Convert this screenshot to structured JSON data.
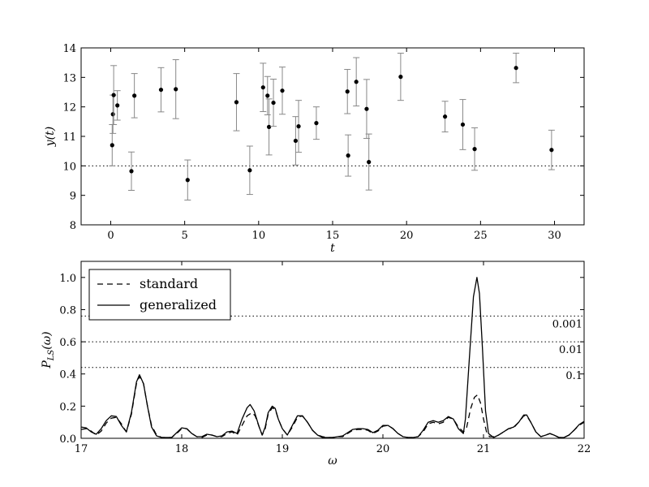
{
  "chart_data": [
    {
      "type": "scatter",
      "xlabel": "t",
      "ylabel": "y(t)",
      "xlim": [
        -2,
        32
      ],
      "ylim": [
        8,
        14
      ],
      "xticks": [
        0,
        5,
        10,
        15,
        20,
        25,
        30
      ],
      "yticks": [
        8,
        9,
        10,
        11,
        12,
        13,
        14
      ],
      "reference_line": {
        "y": 10,
        "style": "dotted"
      },
      "series": [
        {
          "points": [
            {
              "x": 0.1,
              "y": 10.7,
              "err": 0.7
            },
            {
              "x": 0.15,
              "y": 11.75,
              "err": 0.65
            },
            {
              "x": 0.2,
              "y": 12.4,
              "err": 1.0
            },
            {
              "x": 0.45,
              "y": 12.05,
              "err": 0.5
            },
            {
              "x": 1.4,
              "y": 9.82,
              "err": 0.65
            },
            {
              "x": 1.6,
              "y": 12.38,
              "err": 0.75
            },
            {
              "x": 3.4,
              "y": 12.58,
              "err": 0.75
            },
            {
              "x": 4.4,
              "y": 12.6,
              "err": 1.0
            },
            {
              "x": 5.2,
              "y": 9.52,
              "err": 0.68
            },
            {
              "x": 8.5,
              "y": 12.16,
              "err": 0.97
            },
            {
              "x": 9.4,
              "y": 9.85,
              "err": 0.82
            },
            {
              "x": 10.3,
              "y": 12.66,
              "err": 0.82
            },
            {
              "x": 10.6,
              "y": 12.38,
              "err": 0.65
            },
            {
              "x": 10.7,
              "y": 11.32,
              "err": 0.95
            },
            {
              "x": 11.0,
              "y": 12.14,
              "err": 0.8
            },
            {
              "x": 11.6,
              "y": 12.55,
              "err": 0.8
            },
            {
              "x": 12.5,
              "y": 10.85,
              "err": 0.82
            },
            {
              "x": 12.7,
              "y": 11.34,
              "err": 0.88
            },
            {
              "x": 13.9,
              "y": 11.45,
              "err": 0.55
            },
            {
              "x": 16.0,
              "y": 12.52,
              "err": 0.75
            },
            {
              "x": 16.05,
              "y": 10.35,
              "err": 0.7
            },
            {
              "x": 16.6,
              "y": 12.85,
              "err": 0.82
            },
            {
              "x": 17.3,
              "y": 11.93,
              "err": 1.0
            },
            {
              "x": 17.45,
              "y": 10.13,
              "err": 0.95
            },
            {
              "x": 19.6,
              "y": 13.02,
              "err": 0.8
            },
            {
              "x": 22.6,
              "y": 11.67,
              "err": 0.52
            },
            {
              "x": 23.8,
              "y": 11.4,
              "err": 0.85
            },
            {
              "x": 24.6,
              "y": 10.57,
              "err": 0.72
            },
            {
              "x": 27.4,
              "y": 13.32,
              "err": 0.5
            },
            {
              "x": 29.8,
              "y": 10.54,
              "err": 0.67
            }
          ]
        }
      ]
    },
    {
      "type": "line",
      "xlabel": "ω",
      "ylabel": "P_LS(ω)",
      "xlim": [
        17,
        22
      ],
      "ylim": [
        0,
        1.1
      ],
      "xticks": [
        17,
        18,
        19,
        20,
        21,
        22
      ],
      "yticks": [
        "0.0",
        "0.2",
        "0.4",
        "0.6",
        "0.8",
        "1.0"
      ],
      "legend": {
        "position": "top-left"
      },
      "levels": [
        {
          "y": 0.76,
          "label": "0.001"
        },
        {
          "y": 0.6,
          "label": "0.01"
        },
        {
          "y": 0.44,
          "label": "0.1"
        }
      ],
      "series": [
        {
          "name": "standard",
          "style": "dashed",
          "points": [
            [
              17.0,
              0.055
            ],
            [
              17.05,
              0.06
            ],
            [
              17.1,
              0.045
            ],
            [
              17.15,
              0.02
            ],
            [
              17.2,
              0.045
            ],
            [
              17.25,
              0.095
            ],
            [
              17.3,
              0.125
            ],
            [
              17.35,
              0.13
            ],
            [
              17.4,
              0.09
            ],
            [
              17.45,
              0.04
            ],
            [
              17.5,
              0.15
            ],
            [
              17.55,
              0.34
            ],
            [
              17.58,
              0.385
            ],
            [
              17.62,
              0.34
            ],
            [
              17.66,
              0.2
            ],
            [
              17.7,
              0.08
            ],
            [
              17.75,
              0.02
            ],
            [
              17.8,
              0.005
            ],
            [
              17.85,
              0.005
            ],
            [
              17.9,
              0.005
            ],
            [
              17.95,
              0.03
            ],
            [
              18.0,
              0.06
            ],
            [
              18.05,
              0.06
            ],
            [
              18.1,
              0.03
            ],
            [
              18.15,
              0.01
            ],
            [
              18.2,
              0.005
            ],
            [
              18.25,
              0.02
            ],
            [
              18.3,
              0.02
            ],
            [
              18.35,
              0.01
            ],
            [
              18.4,
              0.01
            ],
            [
              18.45,
              0.03
            ],
            [
              18.5,
              0.04
            ],
            [
              18.55,
              0.02
            ],
            [
              18.6,
              0.08
            ],
            [
              18.65,
              0.14
            ],
            [
              18.7,
              0.16
            ],
            [
              18.73,
              0.14
            ],
            [
              18.77,
              0.07
            ],
            [
              18.8,
              0.02
            ],
            [
              18.83,
              0.06
            ],
            [
              18.86,
              0.15
            ],
            [
              18.9,
              0.19
            ],
            [
              18.93,
              0.18
            ],
            [
              18.96,
              0.12
            ],
            [
              19.0,
              0.06
            ],
            [
              19.05,
              0.02
            ],
            [
              19.1,
              0.07
            ],
            [
              19.15,
              0.13
            ],
            [
              19.2,
              0.14
            ],
            [
              19.25,
              0.1
            ],
            [
              19.3,
              0.05
            ],
            [
              19.35,
              0.02
            ],
            [
              19.4,
              0.01
            ],
            [
              19.45,
              0.005
            ],
            [
              19.5,
              0.005
            ],
            [
              19.55,
              0.01
            ],
            [
              19.6,
              0.01
            ],
            [
              19.65,
              0.03
            ],
            [
              19.7,
              0.05
            ],
            [
              19.75,
              0.055
            ],
            [
              19.8,
              0.055
            ],
            [
              19.85,
              0.05
            ],
            [
              19.9,
              0.03
            ],
            [
              19.95,
              0.045
            ],
            [
              20.0,
              0.075
            ],
            [
              20.05,
              0.08
            ],
            [
              20.1,
              0.06
            ],
            [
              20.15,
              0.03
            ],
            [
              20.2,
              0.01
            ],
            [
              20.25,
              0.005
            ],
            [
              20.3,
              0.005
            ],
            [
              20.35,
              0.01
            ],
            [
              20.4,
              0.04
            ],
            [
              20.45,
              0.09
            ],
            [
              20.5,
              0.1
            ],
            [
              20.55,
              0.09
            ],
            [
              20.6,
              0.1
            ],
            [
              20.65,
              0.13
            ],
            [
              20.7,
              0.12
            ],
            [
              20.75,
              0.07
            ],
            [
              20.8,
              0.04
            ],
            [
              20.83,
              0.06
            ],
            [
              20.87,
              0.18
            ],
            [
              20.91,
              0.255
            ],
            [
              20.94,
              0.27
            ],
            [
              20.97,
              0.22
            ],
            [
              21.0,
              0.12
            ],
            [
              21.03,
              0.04
            ],
            [
              21.06,
              0.01
            ],
            [
              21.1,
              0.01
            ],
            [
              21.15,
              0.02
            ],
            [
              21.2,
              0.04
            ],
            [
              21.25,
              0.06
            ],
            [
              21.3,
              0.065
            ],
            [
              21.35,
              0.1
            ],
            [
              21.4,
              0.14
            ],
            [
              21.43,
              0.14
            ],
            [
              21.47,
              0.1
            ],
            [
              21.52,
              0.04
            ],
            [
              21.57,
              0.01
            ],
            [
              21.62,
              0.02
            ],
            [
              21.66,
              0.03
            ],
            [
              21.7,
              0.02
            ],
            [
              21.75,
              0.005
            ],
            [
              21.8,
              0.005
            ],
            [
              21.85,
              0.02
            ],
            [
              21.9,
              0.05
            ],
            [
              21.95,
              0.08
            ],
            [
              22.0,
              0.1
            ]
          ]
        },
        {
          "name": "generalized",
          "style": "solid",
          "points": [
            [
              17.0,
              0.07
            ],
            [
              17.05,
              0.065
            ],
            [
              17.1,
              0.04
            ],
            [
              17.15,
              0.025
            ],
            [
              17.2,
              0.06
            ],
            [
              17.25,
              0.11
            ],
            [
              17.3,
              0.14
            ],
            [
              17.35,
              0.135
            ],
            [
              17.4,
              0.08
            ],
            [
              17.45,
              0.04
            ],
            [
              17.5,
              0.16
            ],
            [
              17.55,
              0.35
            ],
            [
              17.58,
              0.395
            ],
            [
              17.62,
              0.34
            ],
            [
              17.66,
              0.2
            ],
            [
              17.7,
              0.07
            ],
            [
              17.75,
              0.015
            ],
            [
              17.8,
              0.005
            ],
            [
              17.85,
              0.005
            ],
            [
              17.9,
              0.005
            ],
            [
              17.95,
              0.035
            ],
            [
              18.0,
              0.065
            ],
            [
              18.05,
              0.06
            ],
            [
              18.1,
              0.03
            ],
            [
              18.15,
              0.01
            ],
            [
              18.2,
              0.01
            ],
            [
              18.25,
              0.025
            ],
            [
              18.3,
              0.02
            ],
            [
              18.35,
              0.01
            ],
            [
              18.4,
              0.015
            ],
            [
              18.45,
              0.04
            ],
            [
              18.5,
              0.045
            ],
            [
              18.55,
              0.03
            ],
            [
              18.6,
              0.12
            ],
            [
              18.65,
              0.19
            ],
            [
              18.68,
              0.21
            ],
            [
              18.72,
              0.17
            ],
            [
              18.77,
              0.07
            ],
            [
              18.8,
              0.02
            ],
            [
              18.83,
              0.07
            ],
            [
              18.86,
              0.16
            ],
            [
              18.9,
              0.2
            ],
            [
              18.93,
              0.185
            ],
            [
              18.96,
              0.12
            ],
            [
              19.0,
              0.06
            ],
            [
              19.05,
              0.02
            ],
            [
              19.1,
              0.08
            ],
            [
              19.15,
              0.14
            ],
            [
              19.2,
              0.14
            ],
            [
              19.25,
              0.1
            ],
            [
              19.3,
              0.05
            ],
            [
              19.35,
              0.02
            ],
            [
              19.4,
              0.005
            ],
            [
              19.45,
              0.005
            ],
            [
              19.5,
              0.005
            ],
            [
              19.55,
              0.01
            ],
            [
              19.6,
              0.015
            ],
            [
              19.65,
              0.035
            ],
            [
              19.7,
              0.055
            ],
            [
              19.75,
              0.06
            ],
            [
              19.8,
              0.06
            ],
            [
              19.85,
              0.055
            ],
            [
              19.9,
              0.035
            ],
            [
              19.95,
              0.05
            ],
            [
              20.0,
              0.08
            ],
            [
              20.05,
              0.08
            ],
            [
              20.1,
              0.06
            ],
            [
              20.15,
              0.03
            ],
            [
              20.2,
              0.01
            ],
            [
              20.25,
              0.005
            ],
            [
              20.3,
              0.005
            ],
            [
              20.35,
              0.01
            ],
            [
              20.4,
              0.05
            ],
            [
              20.45,
              0.1
            ],
            [
              20.5,
              0.11
            ],
            [
              20.55,
              0.1
            ],
            [
              20.6,
              0.11
            ],
            [
              20.65,
              0.135
            ],
            [
              20.7,
              0.12
            ],
            [
              20.75,
              0.06
            ],
            [
              20.8,
              0.03
            ],
            [
              20.82,
              0.12
            ],
            [
              20.86,
              0.5
            ],
            [
              20.9,
              0.88
            ],
            [
              20.935,
              1.0
            ],
            [
              20.96,
              0.9
            ],
            [
              20.99,
              0.55
            ],
            [
              21.02,
              0.17
            ],
            [
              21.05,
              0.03
            ],
            [
              21.1,
              0.005
            ],
            [
              21.15,
              0.02
            ],
            [
              21.2,
              0.04
            ],
            [
              21.25,
              0.06
            ],
            [
              21.3,
              0.07
            ],
            [
              21.35,
              0.1
            ],
            [
              21.4,
              0.145
            ],
            [
              21.43,
              0.145
            ],
            [
              21.47,
              0.1
            ],
            [
              21.52,
              0.04
            ],
            [
              21.57,
              0.01
            ],
            [
              21.62,
              0.02
            ],
            [
              21.66,
              0.03
            ],
            [
              21.7,
              0.02
            ],
            [
              21.75,
              0.005
            ],
            [
              21.8,
              0.005
            ],
            [
              21.85,
              0.02
            ],
            [
              21.9,
              0.05
            ],
            [
              21.95,
              0.085
            ],
            [
              22.0,
              0.105
            ]
          ]
        }
      ]
    }
  ]
}
